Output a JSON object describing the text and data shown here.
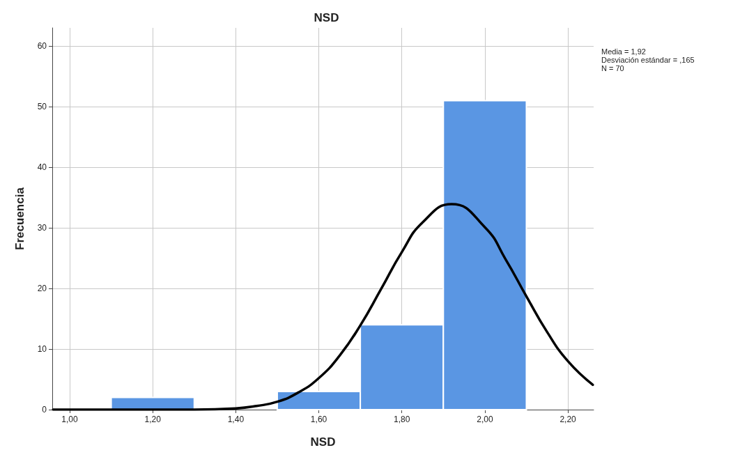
{
  "chart_data": {
    "type": "histogram",
    "title": "NSD",
    "xlabel": "NSD",
    "ylabel": "Frecuencia",
    "annotations": [
      "Media = 1,92",
      "Desviación estándar = ,165",
      "N = 70"
    ],
    "series": [
      {
        "color": "#5a96e3",
        "bins": [
          1.1,
          1.3,
          1.5,
          1.7,
          1.9,
          2.1
        ],
        "values": [
          2,
          0,
          3,
          14,
          51
        ]
      },
      {
        "type": "line",
        "color": "#000000",
        "x": [
          0.96,
          1.1,
          1.2,
          1.3,
          1.4,
          1.45,
          1.5,
          1.55,
          1.6,
          1.65,
          1.7,
          1.75,
          1.8,
          1.85,
          1.92,
          2.0,
          2.05,
          2.1,
          2.15,
          2.2,
          2.26
        ],
        "values": [
          0,
          0,
          0,
          0,
          0.2,
          0.6,
          1.3,
          2.8,
          5.2,
          8.9,
          13.9,
          19.9,
          26.0,
          30.9,
          33.9,
          30.1,
          24.8,
          18.7,
          12.8,
          8.0,
          4.1
        ]
      }
    ],
    "xlim": [
      0.958,
      2.262
    ],
    "xticks": [
      {
        "value": 1,
        "label": "1,00"
      },
      {
        "value": 1.2,
        "label": "1,20"
      },
      {
        "value": 1.4,
        "label": "1,40"
      },
      {
        "value": 1.6,
        "label": "1,60"
      },
      {
        "value": 1.8,
        "label": "1,80"
      },
      {
        "value": 2,
        "label": "2,00"
      },
      {
        "value": 2.2,
        "label": "2,20"
      }
    ],
    "ylim": [
      0,
      63
    ],
    "yticks": [
      0,
      10,
      20,
      30,
      40,
      50,
      60
    ],
    "grid": true,
    "line_style": "solid",
    "marker": "none"
  }
}
